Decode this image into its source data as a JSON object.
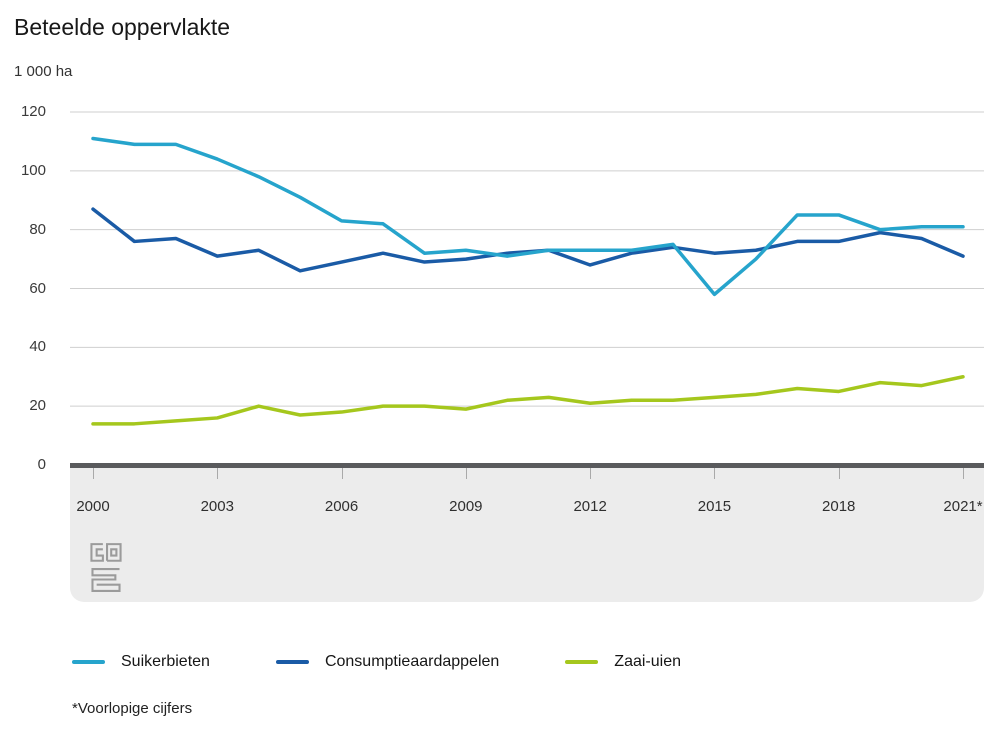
{
  "title": "Beteelde oppervlakte",
  "unit_label": "1 000 ha",
  "footnote": "*Voorlopige cijfers",
  "logo": "cbs-logo",
  "colors": {
    "axis": "#595a5c",
    "gridline": "#cfcfcf",
    "band": "#ececec",
    "suikerbieten": "#26a4cc",
    "consumptieaardappelen": "#1a5ba6",
    "zaai_uien": "#a5c71d"
  },
  "legend": {
    "items": [
      {
        "label": "Suikerbieten",
        "color": "#26a4cc"
      },
      {
        "label": "Consumptieaardappelen",
        "color": "#1a5ba6"
      },
      {
        "label": "Zaai-uien",
        "color": "#a5c71d"
      }
    ]
  },
  "chart_data": {
    "type": "line",
    "title": "Beteelde oppervlakte",
    "ylabel": "1 000 ha",
    "xlabel": "",
    "ylim": [
      0,
      120
    ],
    "yticks": [
      0,
      20,
      40,
      60,
      80,
      100,
      120
    ],
    "grid": "horizontal",
    "legend_position": "bottom",
    "x": [
      2000,
      2001,
      2002,
      2003,
      2004,
      2005,
      2006,
      2007,
      2008,
      2009,
      2010,
      2011,
      2012,
      2013,
      2014,
      2015,
      2016,
      2017,
      2018,
      2019,
      2020,
      2021
    ],
    "xticks": [
      2000,
      2003,
      2006,
      2009,
      2012,
      2015,
      2018,
      2021
    ],
    "xtick_labels": [
      "2000",
      "2003",
      "2006",
      "2009",
      "2012",
      "2015",
      "2018",
      "2021*"
    ],
    "series": [
      {
        "name": "Suikerbieten",
        "color": "#26a4cc",
        "values": [
          111,
          109,
          109,
          104,
          98,
          91,
          83,
          82,
          72,
          73,
          71,
          73,
          73,
          73,
          75,
          58,
          70,
          85,
          85,
          80,
          81,
          81
        ]
      },
      {
        "name": "Consumptieaardappelen",
        "color": "#1a5ba6",
        "values": [
          87,
          76,
          77,
          71,
          73,
          66,
          69,
          72,
          69,
          70,
          72,
          73,
          68,
          72,
          74,
          72,
          73,
          76,
          76,
          79,
          77,
          71
        ]
      },
      {
        "name": "Zaai-uien",
        "color": "#a5c71d",
        "values": [
          14,
          14,
          15,
          16,
          20,
          17,
          18,
          20,
          20,
          19,
          22,
          23,
          21,
          22,
          22,
          23,
          24,
          26,
          25,
          28,
          27,
          30
        ]
      }
    ]
  }
}
